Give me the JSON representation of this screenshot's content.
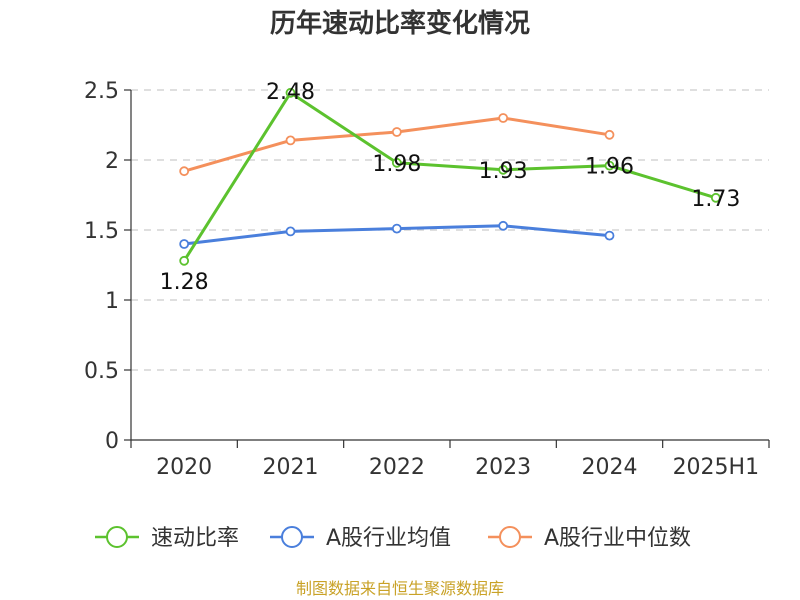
{
  "chart_data": {
    "type": "line",
    "title": "历年速动比率变化情况",
    "categories": [
      "2020",
      "2021",
      "2022",
      "2023",
      "2024",
      "2025H1"
    ],
    "ylim": [
      0,
      2.5
    ],
    "yticks": [
      "0",
      "0.5",
      "1",
      "1.5",
      "2",
      "2.5"
    ],
    "ytick_values": [
      0,
      0.5,
      1,
      1.5,
      2,
      2.5
    ],
    "grid": true,
    "legend_position": "bottom",
    "series": [
      {
        "name": "速动比率",
        "color": "#5cc22e",
        "values": [
          1.28,
          2.48,
          1.98,
          1.93,
          1.96,
          1.73
        ],
        "labels": [
          "1.28",
          "2.48",
          "1.98",
          "1.93",
          "1.96",
          "1.73"
        ]
      },
      {
        "name": "A股行业均值",
        "color": "#4a7fdc",
        "values": [
          1.4,
          1.49,
          1.51,
          1.53,
          1.46,
          null
        ]
      },
      {
        "name": "A股行业中位数",
        "color": "#f4905c",
        "values": [
          1.92,
          2.14,
          2.2,
          2.3,
          2.18,
          null
        ]
      }
    ]
  },
  "source": "制图数据来自恒生聚源数据库"
}
